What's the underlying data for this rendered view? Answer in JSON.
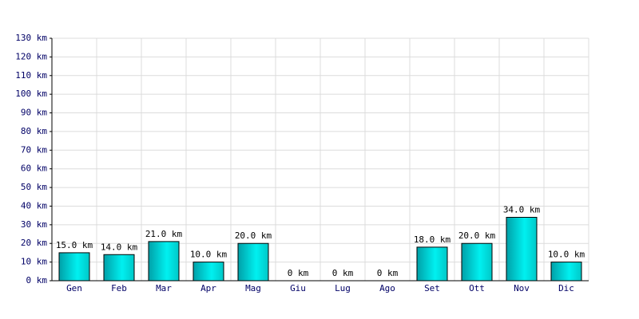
{
  "chart_data": {
    "type": "bar",
    "categories": [
      "Gen",
      "Feb",
      "Mar",
      "Apr",
      "Mag",
      "Giu",
      "Lug",
      "Ago",
      "Set",
      "Ott",
      "Nov",
      "Dic"
    ],
    "values": [
      15,
      14,
      21,
      10,
      20,
      0,
      0,
      0,
      18,
      20,
      34,
      10
    ],
    "value_labels": [
      "15.0 km",
      "14.0 km",
      "21.0 km",
      "10.0 km",
      "20.0 km",
      "0 km",
      "0 km",
      "0 km",
      "18.0 km",
      "20.0 km",
      "34.0 km",
      "10.0 km"
    ],
    "color": "#00d8d8",
    "ylim": [
      0,
      130
    ],
    "yticks": [
      {
        "value": 0,
        "label": "0 km"
      },
      {
        "value": 10,
        "label": "10 km"
      },
      {
        "value": 20,
        "label": "20 km"
      },
      {
        "value": 30,
        "label": "30 km"
      },
      {
        "value": 40,
        "label": "40 km"
      },
      {
        "value": 50,
        "label": "50 km"
      },
      {
        "value": 60,
        "label": "60 km"
      },
      {
        "value": 70,
        "label": "70 km"
      },
      {
        "value": 80,
        "label": "80 km"
      },
      {
        "value": 90,
        "label": "90 km"
      },
      {
        "value": 100,
        "label": "100 km"
      },
      {
        "value": 110,
        "label": "110 km"
      },
      {
        "value": 120,
        "label": "120 km"
      },
      {
        "value": 130,
        "label": "130 km"
      }
    ],
    "grid": true
  }
}
